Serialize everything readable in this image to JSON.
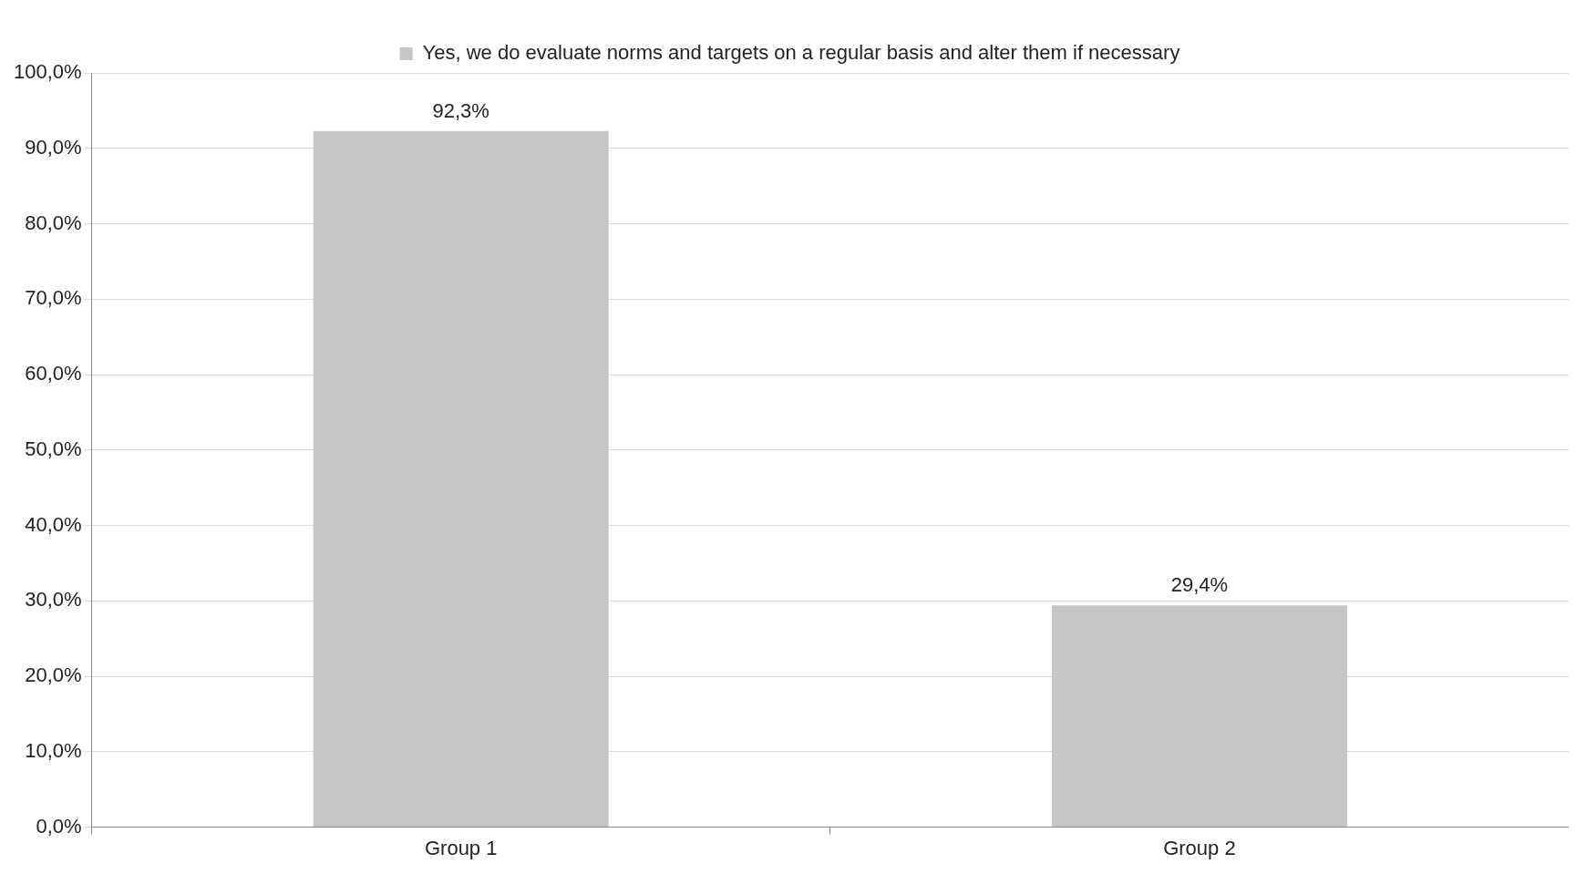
{
  "chart_data": {
    "type": "bar",
    "categories": [
      "Group 1",
      "Group 2"
    ],
    "series": [
      {
        "name": "Yes, we do evaluate norms and targets on a regular basis and alter them if necessary",
        "color": "#c6c6c6",
        "values": [
          92.3,
          29.4
        ],
        "value_labels": [
          "92,3%",
          "29,4%"
        ]
      }
    ],
    "ylim": [
      0,
      100
    ],
    "yticks": [
      {
        "value": 0,
        "label": "0,0%"
      },
      {
        "value": 10,
        "label": "10,0%"
      },
      {
        "value": 20,
        "label": "20,0%"
      },
      {
        "value": 30,
        "label": "30,0%"
      },
      {
        "value": 40,
        "label": "40,0%"
      },
      {
        "value": 50,
        "label": "50,0%"
      },
      {
        "value": 60,
        "label": "60,0%"
      },
      {
        "value": 70,
        "label": "70,0%"
      },
      {
        "value": 80,
        "label": "80,0%"
      },
      {
        "value": 90,
        "label": "90,0%"
      },
      {
        "value": 100,
        "label": "100,0%"
      }
    ],
    "grid": "y",
    "legend": "top"
  }
}
